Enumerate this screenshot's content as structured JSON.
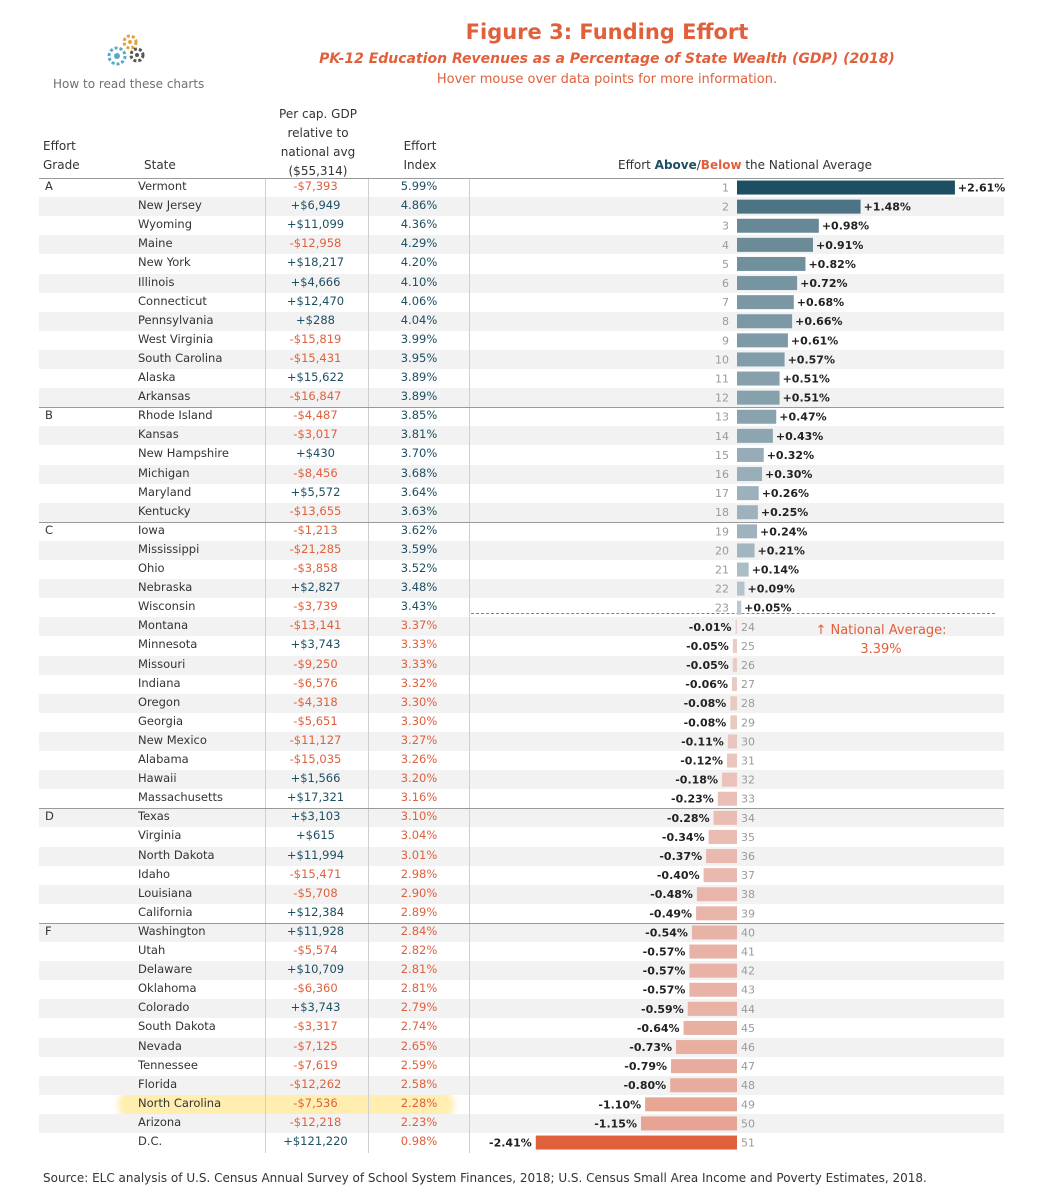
{
  "header": {
    "title": "Figure 3: Funding Effort",
    "subtitle": "PK-12 Education Revenues as a Percentage of State Wealth (GDP) (2018)",
    "hover_note": "Hover mouse over data points for more information.",
    "how_to_read": "How to read these charts"
  },
  "columns": {
    "grade_1": "Effort",
    "grade_2": "Grade",
    "state": "State",
    "gdp_1": "Per cap. GDP",
    "gdp_2": "relative to",
    "gdp_3": "national avg",
    "gdp_4": "($55,314)",
    "effort_1": "Effort",
    "effort_2": "Index",
    "chart_pre": "Effort ",
    "chart_above": "Above",
    "chart_slash": "/",
    "chart_below": "Below",
    "chart_post": " the National Average"
  },
  "national_average": {
    "line1": "↑ National Average:",
    "line2": "3.39%"
  },
  "source": "Source: ELC analysis of U.S. Census Annual Survey of School System Finances, 2018; U.S. Census Small Area Income and Poverty Estimates, 2018.",
  "colors": {
    "positive": "#1d4f63",
    "negative": "#e0603c",
    "highlight": "#ffe06e"
  },
  "chart_data": {
    "type": "bar",
    "title": "Figure 3: Funding Effort",
    "xlabel": "Effort Above/Below the National Average",
    "baseline": "National Average: 3.39%",
    "grades": [
      {
        "grade": "A",
        "start_rank": 1
      },
      {
        "grade": "B",
        "start_rank": 13
      },
      {
        "grade": "C",
        "start_rank": 19
      },
      {
        "grade": "D",
        "start_rank": 34
      },
      {
        "grade": "F",
        "start_rank": 40
      }
    ],
    "rows": [
      {
        "rank": "1",
        "state": "Vermont",
        "gdp": "-$7,393",
        "index": "5.99%",
        "diff": 2.61,
        "diff_label": "+2.61%"
      },
      {
        "rank": "2",
        "state": "New Jersey",
        "gdp": "+$6,949",
        "index": "4.86%",
        "diff": 1.48,
        "diff_label": "+1.48%"
      },
      {
        "rank": "3",
        "state": "Wyoming",
        "gdp": "+$11,099",
        "index": "4.36%",
        "diff": 0.98,
        "diff_label": "+0.98%"
      },
      {
        "rank": "4",
        "state": "Maine",
        "gdp": "-$12,958",
        "index": "4.29%",
        "diff": 0.91,
        "diff_label": "+0.91%"
      },
      {
        "rank": "5",
        "state": "New York",
        "gdp": "+$18,217",
        "index": "4.20%",
        "diff": 0.82,
        "diff_label": "+0.82%"
      },
      {
        "rank": "6",
        "state": "Illinois",
        "gdp": "+$4,666",
        "index": "4.10%",
        "diff": 0.72,
        "diff_label": "+0.72%"
      },
      {
        "rank": "7",
        "state": "Connecticut",
        "gdp": "+$12,470",
        "index": "4.06%",
        "diff": 0.68,
        "diff_label": "+0.68%"
      },
      {
        "rank": "8",
        "state": "Pennsylvania",
        "gdp": "+$288",
        "index": "4.04%",
        "diff": 0.66,
        "diff_label": "+0.66%"
      },
      {
        "rank": "9",
        "state": "West Virginia",
        "gdp": "-$15,819",
        "index": "3.99%",
        "diff": 0.61,
        "diff_label": "+0.61%"
      },
      {
        "rank": "10",
        "state": "South Carolina",
        "gdp": "-$15,431",
        "index": "3.95%",
        "diff": 0.57,
        "diff_label": "+0.57%"
      },
      {
        "rank": "11",
        "state": "Alaska",
        "gdp": "+$15,622",
        "index": "3.89%",
        "diff": 0.51,
        "diff_label": "+0.51%"
      },
      {
        "rank": "12",
        "state": "Arkansas",
        "gdp": "-$16,847",
        "index": "3.89%",
        "diff": 0.51,
        "diff_label": "+0.51%"
      },
      {
        "rank": "13",
        "state": "Rhode Island",
        "gdp": "-$4,487",
        "index": "3.85%",
        "diff": 0.47,
        "diff_label": "+0.47%"
      },
      {
        "rank": "14",
        "state": "Kansas",
        "gdp": "-$3,017",
        "index": "3.81%",
        "diff": 0.43,
        "diff_label": "+0.43%"
      },
      {
        "rank": "15",
        "state": "New Hampshire",
        "gdp": "+$430",
        "index": "3.70%",
        "diff": 0.32,
        "diff_label": "+0.32%"
      },
      {
        "rank": "16",
        "state": "Michigan",
        "gdp": "-$8,456",
        "index": "3.68%",
        "diff": 0.3,
        "diff_label": "+0.30%"
      },
      {
        "rank": "17",
        "state": "Maryland",
        "gdp": "+$5,572",
        "index": "3.64%",
        "diff": 0.26,
        "diff_label": "+0.26%"
      },
      {
        "rank": "18",
        "state": "Kentucky",
        "gdp": "-$13,655",
        "index": "3.63%",
        "diff": 0.25,
        "diff_label": "+0.25%"
      },
      {
        "rank": "19",
        "state": "Iowa",
        "gdp": "-$1,213",
        "index": "3.62%",
        "diff": 0.24,
        "diff_label": "+0.24%"
      },
      {
        "rank": "20",
        "state": "Mississippi",
        "gdp": "-$21,285",
        "index": "3.59%",
        "diff": 0.21,
        "diff_label": "+0.21%"
      },
      {
        "rank": "21",
        "state": "Ohio",
        "gdp": "-$3,858",
        "index": "3.52%",
        "diff": 0.14,
        "diff_label": "+0.14%"
      },
      {
        "rank": "22",
        "state": "Nebraska",
        "gdp": "+$2,827",
        "index": "3.48%",
        "diff": 0.09,
        "diff_label": "+0.09%"
      },
      {
        "rank": "23",
        "state": "Wisconsin",
        "gdp": "-$3,739",
        "index": "3.43%",
        "diff": 0.05,
        "diff_label": "+0.05%"
      },
      {
        "rank": "24",
        "state": "Montana",
        "gdp": "-$13,141",
        "index": "3.37%",
        "diff": -0.01,
        "diff_label": "-0.01%"
      },
      {
        "rank": "25",
        "state": "Minnesota",
        "gdp": "+$3,743",
        "index": "3.33%",
        "diff": -0.05,
        "diff_label": "-0.05%"
      },
      {
        "rank": "26",
        "state": "Missouri",
        "gdp": "-$9,250",
        "index": "3.33%",
        "diff": -0.05,
        "diff_label": "-0.05%"
      },
      {
        "rank": "27",
        "state": "Indiana",
        "gdp": "-$6,576",
        "index": "3.32%",
        "diff": -0.06,
        "diff_label": "-0.06%"
      },
      {
        "rank": "28",
        "state": "Oregon",
        "gdp": "-$4,318",
        "index": "3.30%",
        "diff": -0.08,
        "diff_label": "-0.08%"
      },
      {
        "rank": "29",
        "state": "Georgia",
        "gdp": "-$5,651",
        "index": "3.30%",
        "diff": -0.08,
        "diff_label": "-0.08%"
      },
      {
        "rank": "30",
        "state": "New Mexico",
        "gdp": "-$11,127",
        "index": "3.27%",
        "diff": -0.11,
        "diff_label": "-0.11%"
      },
      {
        "rank": "31",
        "state": "Alabama",
        "gdp": "-$15,035",
        "index": "3.26%",
        "diff": -0.12,
        "diff_label": "-0.12%"
      },
      {
        "rank": "32",
        "state": "Hawaii",
        "gdp": "+$1,566",
        "index": "3.20%",
        "diff": -0.18,
        "diff_label": "-0.18%"
      },
      {
        "rank": "33",
        "state": "Massachusetts",
        "gdp": "+$17,321",
        "index": "3.16%",
        "diff": -0.23,
        "diff_label": "-0.23%"
      },
      {
        "rank": "34",
        "state": "Texas",
        "gdp": "+$3,103",
        "index": "3.10%",
        "diff": -0.28,
        "diff_label": "-0.28%"
      },
      {
        "rank": "35",
        "state": "Virginia",
        "gdp": "+$615",
        "index": "3.04%",
        "diff": -0.34,
        "diff_label": "-0.34%"
      },
      {
        "rank": "36",
        "state": "North Dakota",
        "gdp": "+$11,994",
        "index": "3.01%",
        "diff": -0.37,
        "diff_label": "-0.37%"
      },
      {
        "rank": "37",
        "state": "Idaho",
        "gdp": "-$15,471",
        "index": "2.98%",
        "diff": -0.4,
        "diff_label": "-0.40%"
      },
      {
        "rank": "38",
        "state": "Louisiana",
        "gdp": "-$5,708",
        "index": "2.90%",
        "diff": -0.48,
        "diff_label": "-0.48%"
      },
      {
        "rank": "39",
        "state": "California",
        "gdp": "+$12,384",
        "index": "2.89%",
        "diff": -0.49,
        "diff_label": "-0.49%"
      },
      {
        "rank": "40",
        "state": "Washington",
        "gdp": "+$11,928",
        "index": "2.84%",
        "diff": -0.54,
        "diff_label": "-0.54%"
      },
      {
        "rank": "41",
        "state": "Utah",
        "gdp": "-$5,574",
        "index": "2.82%",
        "diff": -0.57,
        "diff_label": "-0.57%"
      },
      {
        "rank": "42",
        "state": "Delaware",
        "gdp": "+$10,709",
        "index": "2.81%",
        "diff": -0.57,
        "diff_label": "-0.57%"
      },
      {
        "rank": "43",
        "state": "Oklahoma",
        "gdp": "-$6,360",
        "index": "2.81%",
        "diff": -0.57,
        "diff_label": "-0.57%"
      },
      {
        "rank": "44",
        "state": "Colorado",
        "gdp": "+$3,743",
        "index": "2.79%",
        "diff": -0.59,
        "diff_label": "-0.59%"
      },
      {
        "rank": "45",
        "state": "South Dakota",
        "gdp": "-$3,317",
        "index": "2.74%",
        "diff": -0.64,
        "diff_label": "-0.64%"
      },
      {
        "rank": "46",
        "state": "Nevada",
        "gdp": "-$7,125",
        "index": "2.65%",
        "diff": -0.73,
        "diff_label": "-0.73%"
      },
      {
        "rank": "47",
        "state": "Tennessee",
        "gdp": "-$7,619",
        "index": "2.59%",
        "diff": -0.79,
        "diff_label": "-0.79%"
      },
      {
        "rank": "48",
        "state": "Florida",
        "gdp": "-$12,262",
        "index": "2.58%",
        "diff": -0.8,
        "diff_label": "-0.80%"
      },
      {
        "rank": "49",
        "state": "North Carolina",
        "gdp": "-$7,536",
        "index": "2.28%",
        "diff": -1.1,
        "diff_label": "-1.10%",
        "highlighted": true
      },
      {
        "rank": "50",
        "state": "Arizona",
        "gdp": "-$12,218",
        "index": "2.23%",
        "diff": -1.15,
        "diff_label": "-1.15%"
      },
      {
        "rank": "51",
        "state": "D.C.",
        "gdp": "+$121,220",
        "index": "0.98%",
        "diff": -2.41,
        "diff_label": "-2.41%"
      }
    ]
  }
}
